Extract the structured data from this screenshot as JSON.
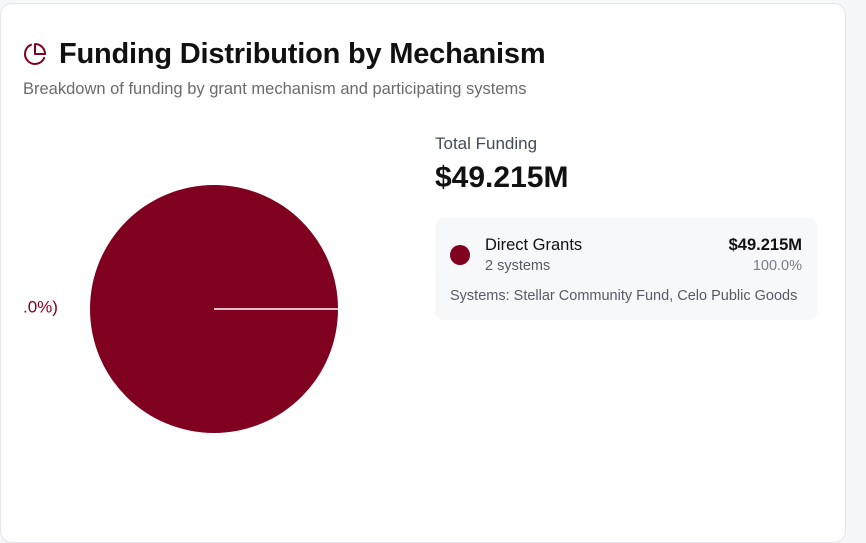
{
  "header": {
    "title": "Funding Distribution by Mechanism",
    "subtitle": "Breakdown of funding by grant mechanism and participating systems",
    "icon": "pie-chart-icon"
  },
  "summary": {
    "total_label": "Total Funding",
    "total_value": "$49.215M"
  },
  "mechanisms": [
    {
      "name": "Direct Grants",
      "systems_count": "2 systems",
      "amount": "$49.215M",
      "percent": "100.0%",
      "systems_list": "Systems: Stellar Community Fund, Celo Public Goods",
      "color": "#800020"
    }
  ],
  "chart_data": {
    "type": "pie",
    "categories": [
      "Direct Grants"
    ],
    "values": [
      49.215
    ],
    "slice_labels": [
      ".0%)"
    ],
    "colors": [
      "#800020"
    ]
  },
  "colors": {
    "accent": "#800020",
    "card_bg": "#ffffff",
    "panel_bg": "#f7f8fa"
  }
}
